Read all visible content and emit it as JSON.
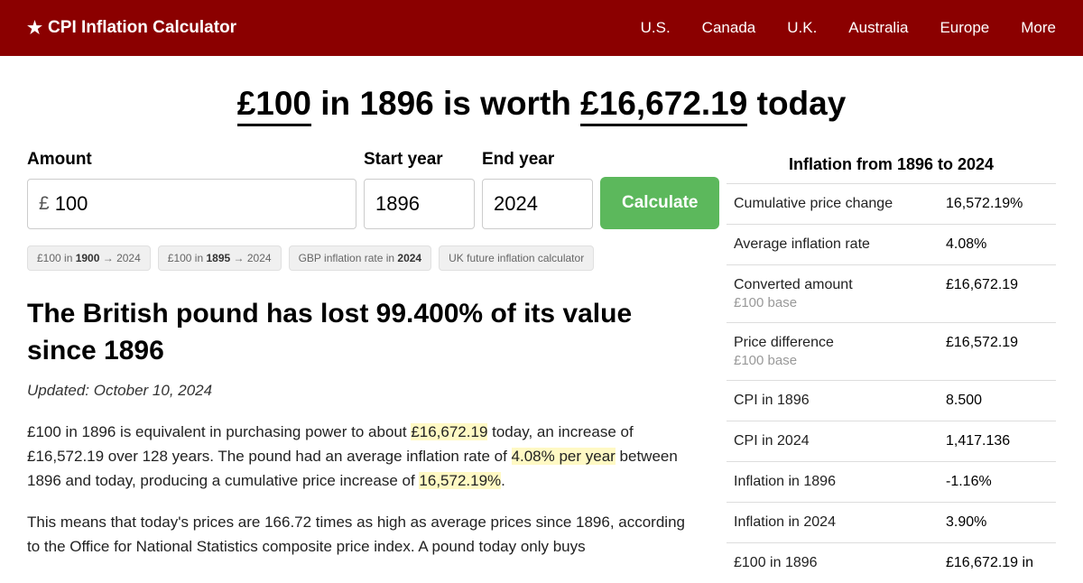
{
  "nav": {
    "brand": "CPI Inflation Calculator",
    "links": [
      "U.S.",
      "Canada",
      "U.K.",
      "Australia",
      "Europe",
      "More"
    ]
  },
  "headline": {
    "amount": "£100",
    "mid1": " in 1896 is worth ",
    "result": "£16,672.19",
    "mid2": " today"
  },
  "form": {
    "amount_label": "Amount",
    "currency": "£",
    "amount_value": "100",
    "start_label": "Start year",
    "start_value": "1896",
    "end_label": "End year",
    "end_value": "2024",
    "button": "Calculate"
  },
  "chips": [
    {
      "pre": "£100 in ",
      "bold": "1900",
      "post": " → 2024"
    },
    {
      "pre": "£100 in ",
      "bold": "1895",
      "post": " → 2024"
    },
    {
      "pre": "GBP inflation rate in ",
      "bold": "2024",
      "post": ""
    },
    {
      "pre": "UK future inflation calculator",
      "bold": "",
      "post": ""
    }
  ],
  "article": {
    "title": "The British pound has lost 99.400% of its value since 1896",
    "updated": "Updated: October 10, 2024",
    "p1a": "£100 in 1896 is equivalent in purchasing power to about ",
    "p1h1": "£16,672.19",
    "p1b": " today, an increase of £16,572.19 over 128 years. The pound had an average inflation rate of ",
    "p1h2": "4.08% per year",
    "p1c": " between 1896 and today, producing a cumulative price increase of ",
    "p1h3": "16,572.19%",
    "p1d": ".",
    "p2": "This means that today's prices are 166.72 times as high as average prices since 1896, according to the Office for National Statistics composite price index. A pound today only buys"
  },
  "sidebar": {
    "title": "Inflation from 1896 to 2024",
    "rows": [
      {
        "label": "Cumulative price change",
        "sub": "",
        "value": "16,572.19%"
      },
      {
        "label": "Average inflation rate",
        "sub": "",
        "value": "4.08%"
      },
      {
        "label": "Converted amount",
        "sub": "£100 base",
        "value": "£16,672.19"
      },
      {
        "label": "Price difference",
        "sub": "£100 base",
        "value": "£16,572.19"
      },
      {
        "label": "CPI in 1896",
        "sub": "",
        "value": "8.500"
      },
      {
        "label": "CPI in 2024",
        "sub": "",
        "value": "1,417.136"
      },
      {
        "label": "Inflation in 1896",
        "sub": "",
        "value": "-1.16%"
      },
      {
        "label": "Inflation in 2024",
        "sub": "",
        "value": "3.90%"
      },
      {
        "label": "£100 in 1896",
        "sub": "",
        "value": "£16,672.19 in"
      }
    ]
  }
}
